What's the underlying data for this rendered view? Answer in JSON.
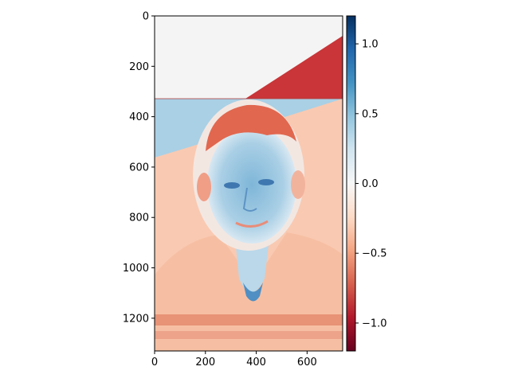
{
  "chart_data": {
    "type": "heatmap",
    "title": "",
    "xlabel": "",
    "ylabel": "",
    "image_extent": {
      "x": [
        0,
        740
      ],
      "y": [
        0,
        1330
      ]
    },
    "y_inverted": true,
    "x_ticks": [
      0,
      200,
      400,
      600
    ],
    "y_ticks": [
      0,
      200,
      400,
      600,
      800,
      1000,
      1200
    ],
    "x_tick_labels": [
      "0",
      "200",
      "400",
      "600"
    ],
    "y_tick_labels": [
      "0",
      "200",
      "400",
      "600",
      "800",
      "1000",
      "1200"
    ],
    "colormap": "RdBu",
    "clim": [
      -1.2,
      1.2
    ],
    "colorbar_ticks": [
      1.0,
      0.5,
      0.0,
      -0.5,
      -1.0
    ],
    "colorbar_tick_labels": [
      "1.0",
      "0.5",
      "0.0",
      "−0.5",
      "−1.0"
    ],
    "regions": [
      {
        "name": "upper-left background",
        "approx_value": 0.0,
        "color": "#f4f4f4"
      },
      {
        "name": "upper-right diagonal wedge",
        "approx_value": -0.9,
        "color": "#c93538"
      },
      {
        "name": "left diagonal band",
        "approx_value": 0.45,
        "color": "#a9d0e5"
      },
      {
        "name": "inner photo region",
        "approx_value": -0.3,
        "color": "#f9c9b1"
      }
    ],
    "image_content": "grayscale-difference portrait of a man shown with a diverging colormap"
  }
}
